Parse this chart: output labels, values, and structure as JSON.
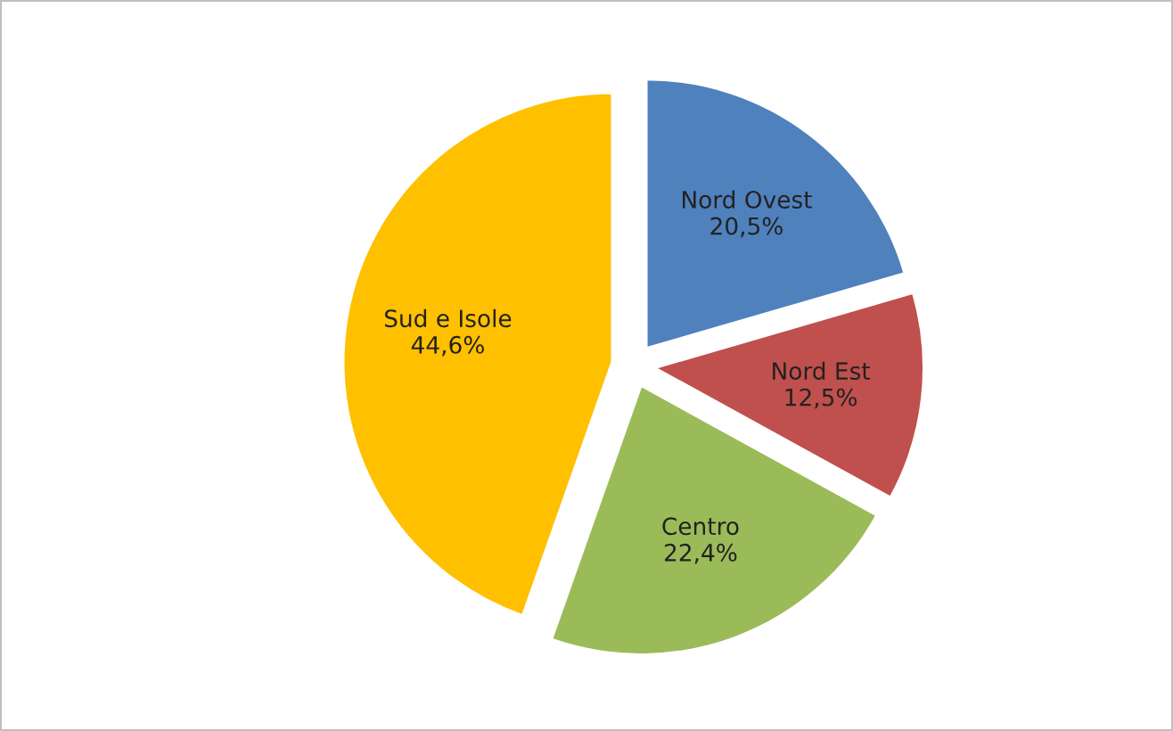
{
  "chart_data": {
    "type": "pie",
    "categories": [
      "Nord Ovest",
      "Nord Est",
      "Centro",
      "Sud e Isole"
    ],
    "values": [
      20.5,
      12.5,
      22.4,
      44.6
    ],
    "value_labels": [
      "20,5%",
      "12,5%",
      "22,4%",
      "44,6%"
    ],
    "colors": [
      "#4f81bd",
      "#c0504d",
      "#9bbb59",
      "#ffc000"
    ],
    "legend": false
  }
}
